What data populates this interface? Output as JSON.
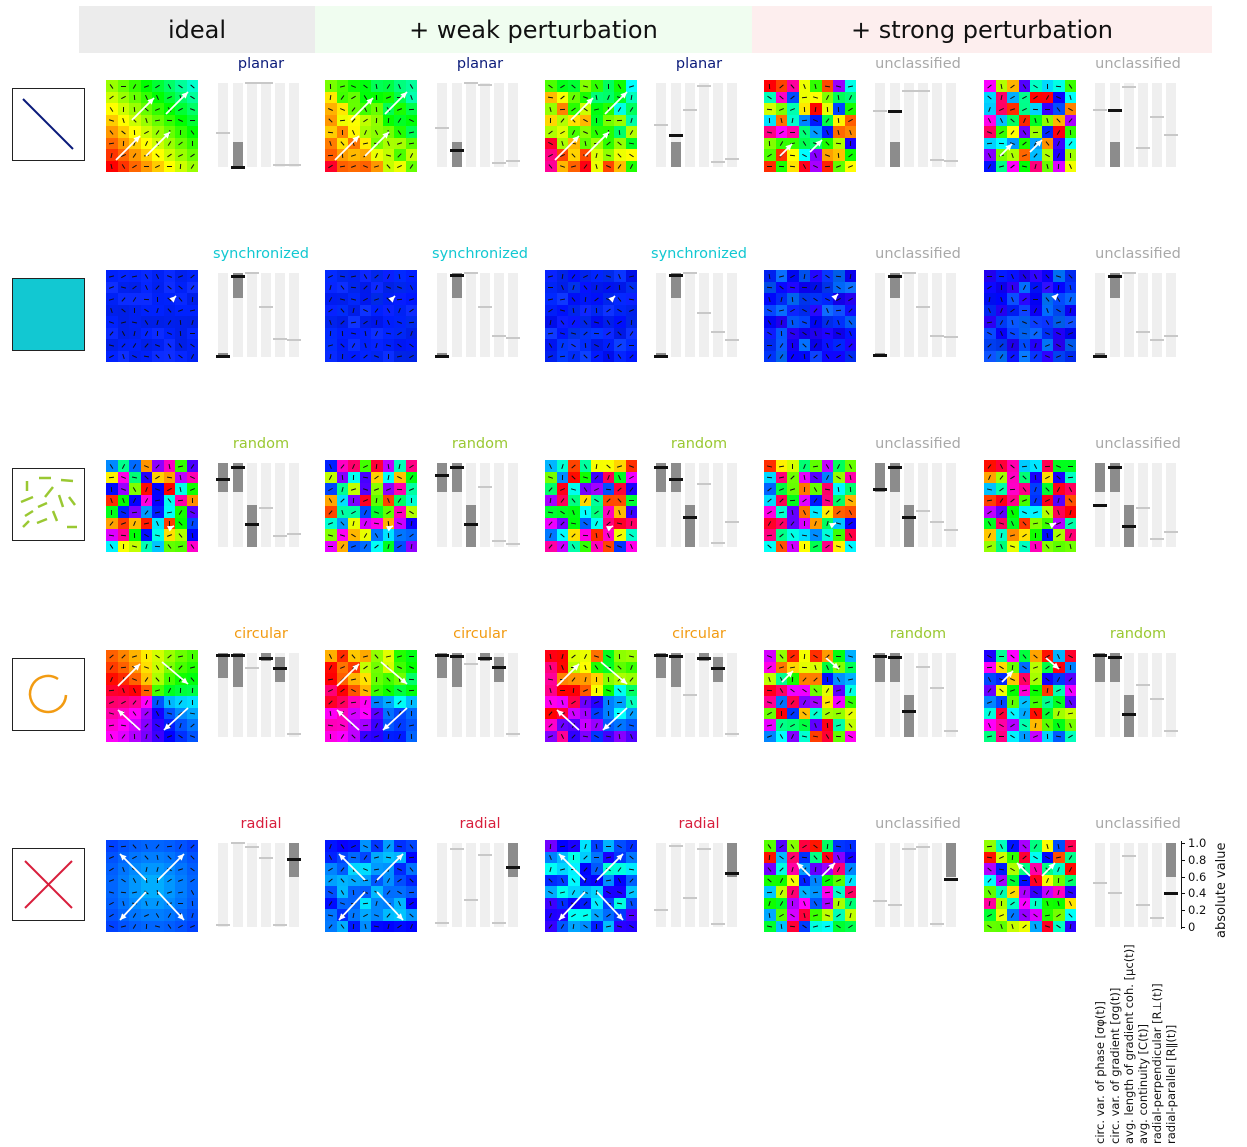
{
  "headers": [
    {
      "label": "ideal",
      "bg": "#ececec"
    },
    {
      "label": "+ weak perturbation",
      "bg": "#f0fdf0"
    },
    {
      "label": "+ strong perturbation",
      "bg": "#fdeeee"
    }
  ],
  "classes": {
    "planar": "#0a1a7a",
    "synchronized": "#12c8d2",
    "random": "#9ac832",
    "circular": "#f29b12",
    "radial": "#d81e3c",
    "unclassified": "#a9a9a9"
  },
  "rows": [
    {
      "pattern": "planar",
      "labels": [
        "planar",
        "planar",
        "planar",
        "unclassified",
        "unclassified"
      ]
    },
    {
      "pattern": "synchronized",
      "labels": [
        "synchronized",
        "synchronized",
        "synchronized",
        "unclassified",
        "unclassified"
      ]
    },
    {
      "pattern": "random",
      "labels": [
        "random",
        "random",
        "random",
        "unclassified",
        "unclassified"
      ]
    },
    {
      "pattern": "circular",
      "labels": [
        "circular",
        "circular",
        "circular",
        "random",
        "random"
      ]
    },
    {
      "pattern": "radial",
      "labels": [
        "radial",
        "radial",
        "radial",
        "unclassified",
        "unclassified"
      ]
    }
  ],
  "measures": [
    "circ. var. of phase [σφ(t)]",
    "circ. var. of gradient [σg(t)]",
    "avg. length of gradient coh. [μc(t)]",
    "avg. continuity [C(t)]",
    "radial-perpendicular [R⊥(t)]",
    "radial-parallel [R∥(t)]"
  ],
  "axis": {
    "label": "absolute value",
    "ticks": [
      "1.0",
      "0.8",
      "0.6",
      "0.4",
      "0.2",
      "0"
    ]
  },
  "chart_data": {
    "type": "bar",
    "ylim": [
      0,
      1
    ],
    "ranges": {
      "planar": [
        null,
        [
          0,
          0.3
        ],
        null,
        null,
        null,
        null
      ],
      "synchronized": [
        [
          0,
          0.05
        ],
        [
          0.7,
          1
        ],
        null,
        null,
        null,
        null
      ],
      "random": [
        [
          0.65,
          1
        ],
        [
          0.65,
          1
        ],
        [
          0,
          0.5
        ],
        null,
        null,
        null
      ],
      "circular": [
        [
          0.7,
          1
        ],
        [
          0.6,
          1
        ],
        null,
        [
          0.9,
          1
        ],
        [
          0.65,
          0.95
        ],
        null
      ],
      "radial": [
        null,
        null,
        null,
        null,
        null,
        [
          0.6,
          1
        ]
      ]
    },
    "panels": [
      [
        [
          0.4,
          0.0,
          1.0,
          1.0,
          0.02,
          0.02
        ],
        [
          0.47,
          0.2,
          1.0,
          0.98,
          0.05,
          0.07
        ],
        [
          0.5,
          0.37,
          0.68,
          0.96,
          0.06,
          0.09
        ],
        [
          0.67,
          0.66,
          0.9,
          0.9,
          0.08,
          0.07
        ],
        [
          0.68,
          0.67,
          0.95,
          0.23,
          0.6,
          0.38
        ]
      ],
      [
        [
          0.01,
          0.96,
          1.0,
          0.6,
          0.22,
          0.2
        ],
        [
          0.01,
          0.97,
          1.0,
          0.6,
          0.25,
          0.23
        ],
        [
          0.01,
          0.97,
          1.0,
          0.52,
          0.3,
          0.2
        ],
        [
          0.02,
          0.96,
          1.0,
          0.6,
          0.25,
          0.24
        ],
        [
          0.01,
          0.96,
          1.0,
          0.3,
          0.2,
          0.25
        ]
      ],
      [
        [
          0.8,
          0.95,
          0.27,
          0.47,
          0.13,
          0.15
        ],
        [
          0.85,
          0.95,
          0.27,
          0.72,
          0.07,
          0.03
        ],
        [
          0.95,
          0.8,
          0.35,
          0.75,
          0.05,
          0.3
        ],
        [
          0.68,
          0.95,
          0.35,
          0.43,
          0.3,
          0.2
        ],
        [
          0.5,
          0.95,
          0.25,
          0.47,
          0.1,
          0.18
        ]
      ],
      [
        [
          0.97,
          0.97,
          0.82,
          0.93,
          0.82,
          0.04
        ],
        [
          0.97,
          0.96,
          0.87,
          0.93,
          0.83,
          0.04
        ],
        [
          0.97,
          0.96,
          0.5,
          0.93,
          0.82,
          0.04
        ],
        [
          0.96,
          0.95,
          0.3,
          0.83,
          0.58,
          0.07
        ],
        [
          0.97,
          0.95,
          0.27,
          0.62,
          0.45,
          0.07
        ]
      ],
      [
        [
          0.02,
          1.0,
          0.95,
          0.82,
          0.02,
          0.8
        ],
        [
          0.05,
          0.93,
          0.32,
          0.86,
          0.05,
          0.71
        ],
        [
          0.2,
          0.96,
          0.35,
          0.93,
          0.04,
          0.64
        ],
        [
          0.31,
          0.26,
          0.93,
          0.95,
          0.03,
          0.56
        ],
        [
          0.52,
          0.4,
          0.85,
          0.26,
          0.11,
          0.4
        ]
      ]
    ]
  }
}
